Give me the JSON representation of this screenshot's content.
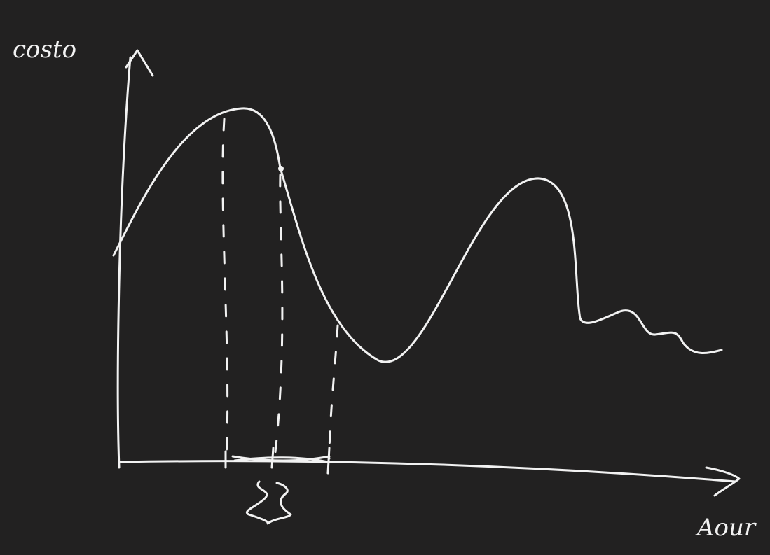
{
  "labels": {
    "y_axis": "costo",
    "x_axis": "Aour"
  }
}
